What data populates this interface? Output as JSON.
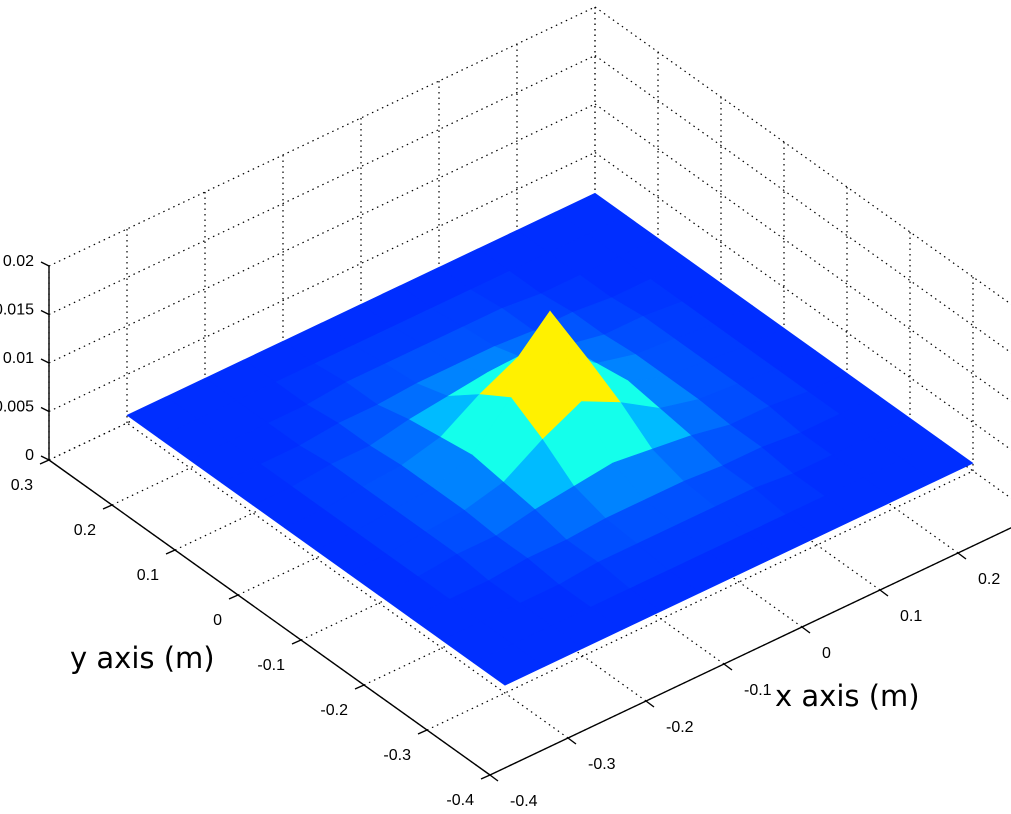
{
  "chart_data": {
    "type": "surface",
    "xlabel": "x axis (m)",
    "ylabel": "y axis (m)",
    "xlim": [
      -0.4,
      0.3
    ],
    "ylim": [
      -0.4,
      0.3
    ],
    "zlim": [
      0,
      0.02
    ],
    "xticks": [
      -0.4,
      -0.3,
      -0.2,
      -0.1,
      0,
      0.1,
      0.2
    ],
    "yticks": [
      -0.4,
      -0.3,
      -0.2,
      -0.1,
      0,
      0.1,
      0.2,
      0.3
    ],
    "zticks": [
      0,
      0.005,
      0.01,
      0.015,
      0.02
    ],
    "grid": true,
    "colormap": "jet",
    "x": [
      -0.3,
      -0.25,
      -0.2,
      -0.15,
      -0.1,
      -0.05,
      0,
      0.05,
      0.1,
      0.15,
      0.2,
      0.25,
      0.3
    ],
    "y": [
      -0.3,
      -0.25,
      -0.2,
      -0.15,
      -0.1,
      -0.05,
      0,
      0.05,
      0.1,
      0.15,
      0.2,
      0.25,
      0.3
    ],
    "z": [
      [
        0.0008,
        0.0008,
        0.0008,
        0.0008,
        0.0008,
        0.0008,
        0.0008,
        0.0008,
        0.0008,
        0.0008,
        0.0008,
        0.0008,
        0.0008
      ],
      [
        0.0008,
        0.0008,
        0.0008,
        0.0008,
        0.0008,
        0.0008,
        0.0008,
        0.0008,
        0.0008,
        0.0008,
        0.0008,
        0.0008,
        0.0008
      ],
      [
        0.0008,
        0.0008,
        0.0008,
        0.0008,
        0.0012,
        0.0012,
        0.0012,
        0.0012,
        0.0012,
        0.0008,
        0.0008,
        0.0008,
        0.0008
      ],
      [
        0.0008,
        0.0008,
        0.0008,
        0.0012,
        0.0012,
        0.0015,
        0.0015,
        0.0015,
        0.0012,
        0.0012,
        0.0008,
        0.0008,
        0.0008
      ],
      [
        0.0008,
        0.0008,
        0.0012,
        0.0012,
        0.002,
        0.0025,
        0.003,
        0.0025,
        0.002,
        0.0012,
        0.0012,
        0.0008,
        0.0008
      ],
      [
        0.0008,
        0.0008,
        0.0012,
        0.0015,
        0.0025,
        0.005,
        0.007,
        0.005,
        0.0025,
        0.0015,
        0.0012,
        0.0008,
        0.0008
      ],
      [
        0.0008,
        0.0008,
        0.0012,
        0.0015,
        0.003,
        0.007,
        0.014,
        0.007,
        0.003,
        0.0015,
        0.0012,
        0.0008,
        0.0008
      ],
      [
        0.0008,
        0.0008,
        0.0012,
        0.0015,
        0.0025,
        0.005,
        0.007,
        0.005,
        0.0025,
        0.0015,
        0.0012,
        0.0008,
        0.0008
      ],
      [
        0.0008,
        0.0008,
        0.0012,
        0.0012,
        0.002,
        0.0025,
        0.003,
        0.0025,
        0.002,
        0.0012,
        0.0012,
        0.0008,
        0.0008
      ],
      [
        0.0008,
        0.0008,
        0.0008,
        0.0012,
        0.0012,
        0.0015,
        0.0015,
        0.0015,
        0.0012,
        0.0012,
        0.0008,
        0.0008,
        0.0008
      ],
      [
        0.0008,
        0.0008,
        0.0008,
        0.0008,
        0.0012,
        0.0012,
        0.0012,
        0.0012,
        0.0012,
        0.0008,
        0.0008,
        0.0008,
        0.0008
      ],
      [
        0.0008,
        0.0008,
        0.0008,
        0.0008,
        0.0008,
        0.0008,
        0.0008,
        0.0008,
        0.0008,
        0.0008,
        0.0008,
        0.0008,
        0.0008
      ],
      [
        0.0008,
        0.0008,
        0.0008,
        0.0008,
        0.0008,
        0.0008,
        0.0008,
        0.0008,
        0.0008,
        0.0008,
        0.0008,
        0.0008,
        0.0008
      ]
    ]
  }
}
